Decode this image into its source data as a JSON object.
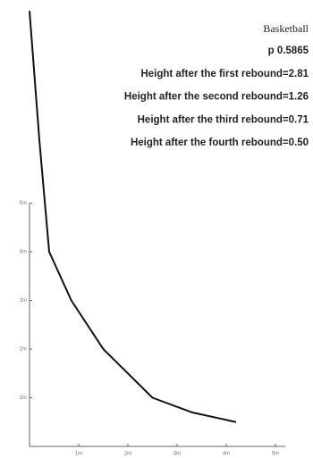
{
  "chart_data": {
    "type": "line",
    "title": "Basketball",
    "annotations": [
      "p 0.5865",
      "Height after the first rebound=2.81",
      "Height after the second rebound=1.26",
      "Height after the third rebound=0.71",
      "Height after the fourth rebound=0.50"
    ],
    "x": [
      0,
      0.2,
      0.4,
      0.85,
      1.5,
      2.5,
      3.3,
      4.2
    ],
    "series": [
      {
        "name": "Basketball",
        "color": "#111111",
        "values": [
          8.95,
          6.3,
          4,
          3,
          2,
          1,
          0.7,
          0.5
        ]
      }
    ],
    "xlim": [
      0,
      5.2
    ],
    "ylim": [
      0,
      9
    ],
    "xticks": [
      {
        "value": 1,
        "label": "1m"
      },
      {
        "value": 2,
        "label": "2m"
      },
      {
        "value": 3,
        "label": "3m"
      },
      {
        "value": 4,
        "label": "4m"
      },
      {
        "value": 5,
        "label": "5m"
      }
    ],
    "yticks": [
      {
        "value": 1,
        "label": "1m"
      },
      {
        "value": 2,
        "label": "2m"
      },
      {
        "value": 3,
        "label": "3m"
      },
      {
        "value": 4,
        "label": "4m"
      },
      {
        "value": 5,
        "label": "5m"
      }
    ]
  }
}
